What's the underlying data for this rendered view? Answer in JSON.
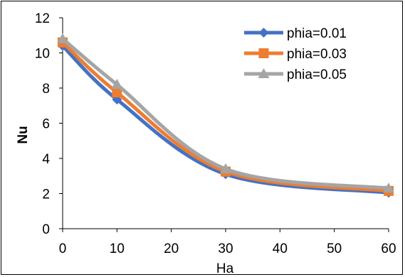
{
  "chart_data": {
    "type": "line",
    "title": "",
    "xlabel": "Ha",
    "ylabel": "Nu",
    "x": [
      0,
      10,
      30,
      60
    ],
    "xlim": [
      0,
      60
    ],
    "ylim": [
      0,
      12
    ],
    "xticks": [
      0,
      10,
      20,
      30,
      40,
      50,
      60
    ],
    "yticks": [
      0,
      2,
      4,
      6,
      8,
      10,
      12
    ],
    "grid": false,
    "smooth": true,
    "legend_position": "top-right",
    "series": [
      {
        "name": "phia=0.01",
        "color": "#4472C4",
        "marker": "diamond",
        "values": [
          10.4,
          7.35,
          3.1,
          2.05
        ]
      },
      {
        "name": "phia=0.03",
        "color": "#ED7D31",
        "marker": "square",
        "values": [
          10.6,
          7.75,
          3.25,
          2.15
        ]
      },
      {
        "name": "phia=0.05",
        "color": "#A5A5A5",
        "marker": "triangle",
        "values": [
          10.8,
          8.2,
          3.4,
          2.3
        ]
      }
    ]
  }
}
